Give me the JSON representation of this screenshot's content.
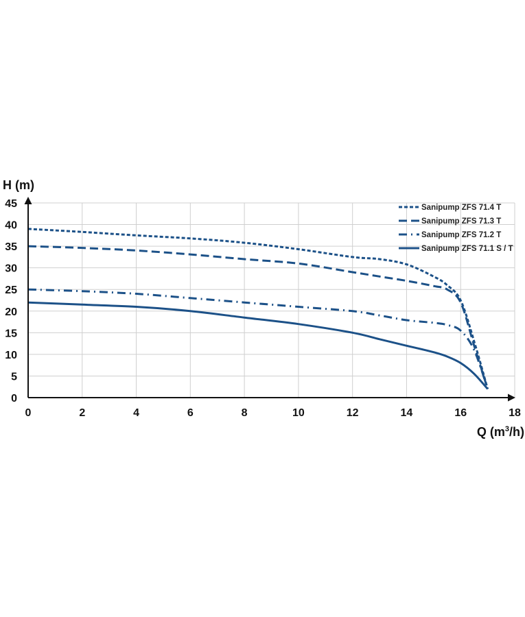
{
  "chart_data": {
    "type": "line",
    "title": "",
    "ylabel": "H (m)",
    "xlabel_main": "Q (m",
    "xlabel_sup": "3",
    "xlabel_tail": "/h)",
    "xlim": [
      0,
      18
    ],
    "ylim": [
      0,
      45
    ],
    "xticks": [
      0,
      2,
      4,
      6,
      8,
      10,
      12,
      14,
      16,
      18
    ],
    "yticks": [
      0,
      5,
      10,
      15,
      20,
      25,
      30,
      35,
      40,
      45
    ],
    "grid": true,
    "legend_position": "top-right",
    "line_color": "#1c5188",
    "series": [
      {
        "name": "Sanipump ZFS 71.4 T",
        "style": "short-dash",
        "x": [
          0,
          2,
          4,
          6,
          8,
          10,
          12,
          13,
          14,
          15,
          15.5,
          16,
          16.5,
          17
        ],
        "y": [
          39,
          38.3,
          37.5,
          36.8,
          35.8,
          34.3,
          32.5,
          32,
          30.8,
          28,
          26,
          22.5,
          13,
          2
        ]
      },
      {
        "name": "Sanipump ZFS 71.3 T",
        "style": "long-dash",
        "x": [
          0,
          2,
          4,
          6,
          8,
          10,
          12,
          13,
          14,
          15,
          15.5,
          16,
          16.5,
          17
        ],
        "y": [
          35,
          34.6,
          34,
          33.1,
          32,
          31,
          29,
          28,
          27,
          25.8,
          25,
          22,
          12,
          2
        ]
      },
      {
        "name": "Sanipump ZFS 71.2 T",
        "style": "dash-dot",
        "x": [
          0,
          2,
          4,
          6,
          8,
          10,
          12,
          13,
          14,
          15,
          15.5,
          16,
          16.5,
          17
        ],
        "y": [
          25,
          24.6,
          24,
          23,
          22,
          21,
          20,
          19,
          17.9,
          17.3,
          16.8,
          15.5,
          11,
          2
        ]
      },
      {
        "name": "Sanipump ZFS 71.1 S / T",
        "style": "solid",
        "x": [
          0,
          2,
          4,
          6,
          8,
          10,
          12,
          13,
          14,
          15,
          15.5,
          16,
          16.5,
          17
        ],
        "y": [
          22,
          21.5,
          21,
          20,
          18.5,
          17,
          15,
          13.5,
          12,
          10.5,
          9.5,
          8,
          5.5,
          2
        ]
      }
    ]
  }
}
